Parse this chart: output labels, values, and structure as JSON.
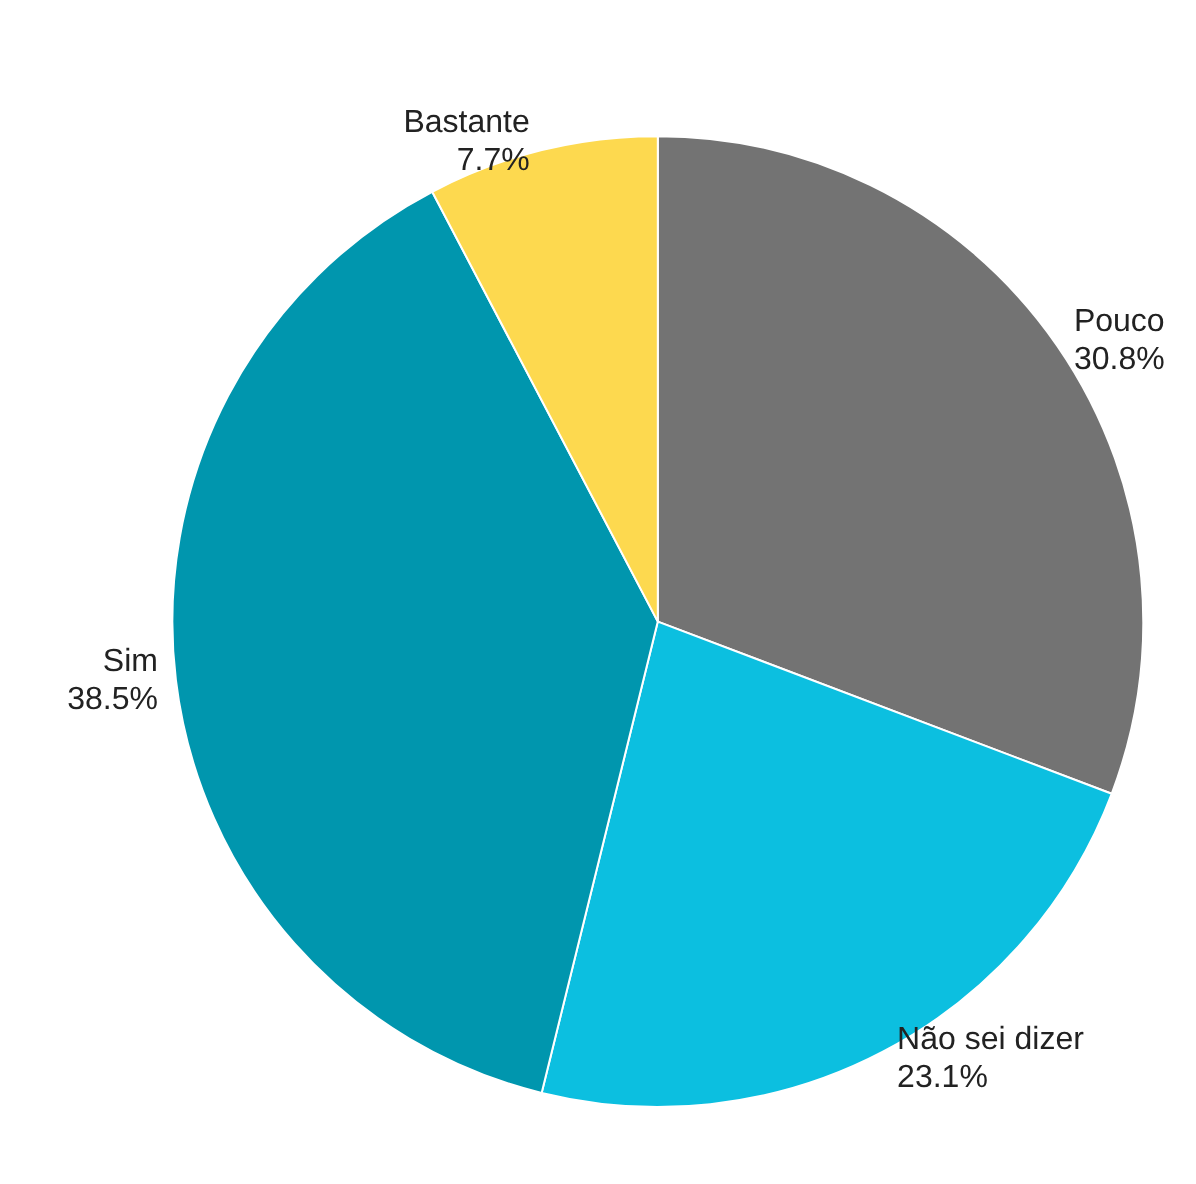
{
  "chart_data": {
    "type": "pie",
    "categories": [
      "Pouco",
      "Não sei dizer",
      "Sim",
      "Bastante"
    ],
    "values": [
      30.8,
      23.1,
      38.5,
      7.7
    ],
    "colors": [
      "#737373",
      "#0cbfe0",
      "#0096ae",
      "#fdd94f"
    ],
    "value_labels": [
      "30.8%",
      "23.1%",
      "38.5%",
      "7.7%"
    ],
    "legend": false
  }
}
